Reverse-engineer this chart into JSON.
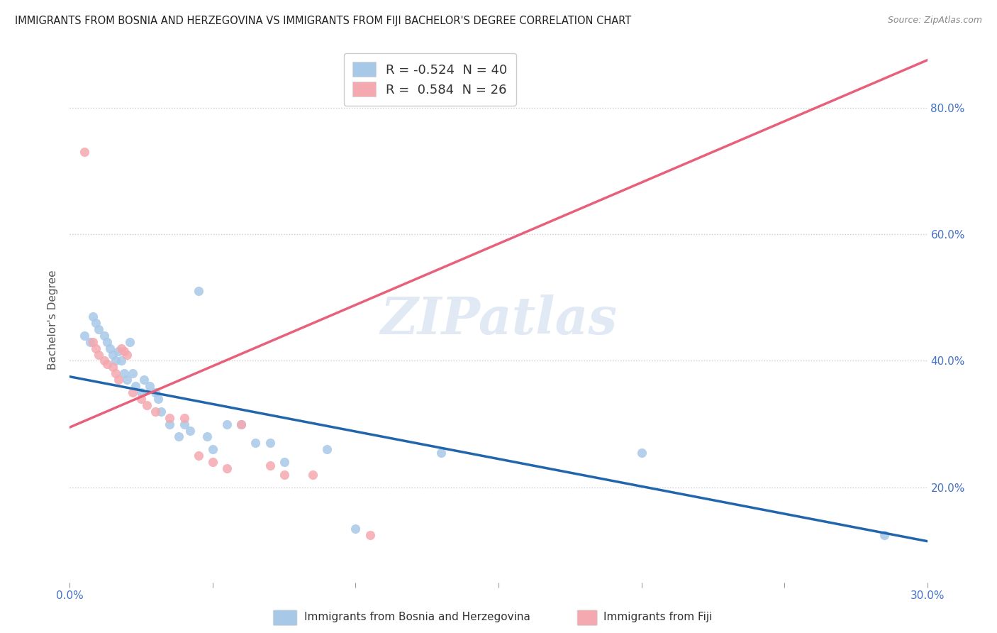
{
  "title": "IMMIGRANTS FROM BOSNIA AND HERZEGOVINA VS IMMIGRANTS FROM FIJI BACHELOR'S DEGREE CORRELATION CHART",
  "source": "Source: ZipAtlas.com",
  "ylabel": "Bachelor's Degree",
  "xlim": [
    0.0,
    0.3
  ],
  "ylim": [
    0.05,
    0.88
  ],
  "x_tick_positions": [
    0.0,
    0.05,
    0.1,
    0.15,
    0.2,
    0.25,
    0.3
  ],
  "x_tick_labels": [
    "0.0%",
    "",
    "",
    "",
    "",
    "",
    "30.0%"
  ],
  "y_tick_positions": [
    0.2,
    0.4,
    0.6,
    0.8
  ],
  "y_tick_labels": [
    "20.0%",
    "40.0%",
    "60.0%",
    "80.0%"
  ],
  "bosnia_color": "#a8c8e8",
  "fiji_color": "#f4a8b0",
  "bosnia_line_color": "#2166ac",
  "fiji_line_color": "#e8607a",
  "legend_bosnia_r": "-0.524",
  "legend_bosnia_n": "40",
  "legend_fiji_r": "0.584",
  "legend_fiji_n": "26",
  "legend1_label": "Immigrants from Bosnia and Herzegovina",
  "legend2_label": "Immigrants from Fiji",
  "watermark": "ZIPatlas",
  "bosnia_line_x0": 0.0,
  "bosnia_line_y0": 0.375,
  "bosnia_line_x1": 0.3,
  "bosnia_line_y1": 0.115,
  "fiji_line_x0": 0.0,
  "fiji_line_y0": 0.295,
  "fiji_line_x1": 0.3,
  "fiji_line_y1": 0.875,
  "bosnia_scatter_x": [
    0.005,
    0.007,
    0.008,
    0.009,
    0.01,
    0.012,
    0.013,
    0.014,
    0.015,
    0.016,
    0.017,
    0.018,
    0.019,
    0.02,
    0.021,
    0.022,
    0.023,
    0.025,
    0.026,
    0.028,
    0.03,
    0.031,
    0.032,
    0.035,
    0.038,
    0.04,
    0.042,
    0.045,
    0.048,
    0.05,
    0.055,
    0.06,
    0.065,
    0.07,
    0.075,
    0.09,
    0.1,
    0.13,
    0.2,
    0.285
  ],
  "bosnia_scatter_y": [
    0.44,
    0.43,
    0.47,
    0.46,
    0.45,
    0.44,
    0.43,
    0.42,
    0.41,
    0.4,
    0.415,
    0.4,
    0.38,
    0.37,
    0.43,
    0.38,
    0.36,
    0.35,
    0.37,
    0.36,
    0.35,
    0.34,
    0.32,
    0.3,
    0.28,
    0.3,
    0.29,
    0.51,
    0.28,
    0.26,
    0.3,
    0.3,
    0.27,
    0.27,
    0.24,
    0.26,
    0.135,
    0.255,
    0.255,
    0.125
  ],
  "fiji_scatter_x": [
    0.005,
    0.008,
    0.009,
    0.01,
    0.012,
    0.013,
    0.015,
    0.016,
    0.017,
    0.018,
    0.019,
    0.02,
    0.022,
    0.025,
    0.027,
    0.03,
    0.035,
    0.04,
    0.045,
    0.05,
    0.055,
    0.06,
    0.07,
    0.075,
    0.085,
    0.105
  ],
  "fiji_scatter_y": [
    0.73,
    0.43,
    0.42,
    0.41,
    0.4,
    0.395,
    0.39,
    0.38,
    0.37,
    0.42,
    0.415,
    0.41,
    0.35,
    0.34,
    0.33,
    0.32,
    0.31,
    0.31,
    0.25,
    0.24,
    0.23,
    0.3,
    0.235,
    0.22,
    0.22,
    0.125
  ]
}
